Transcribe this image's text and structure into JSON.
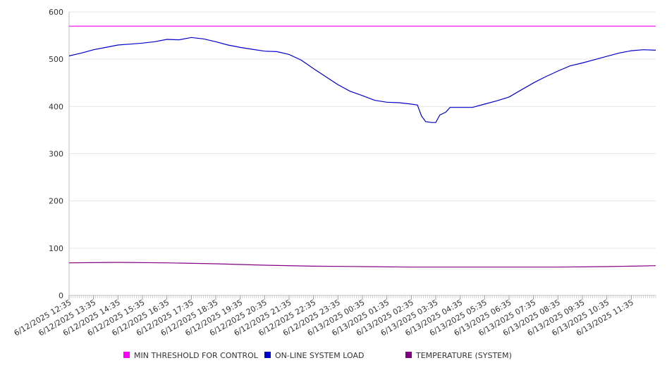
{
  "chart_data": {
    "type": "line",
    "grid": true,
    "legend_position": "bottom",
    "ylim": [
      0,
      600
    ],
    "y_ticks": [
      "0",
      "100",
      "200",
      "300",
      "400",
      "500",
      "600"
    ],
    "x_tick_labels": [
      "6/12/2025 12:35",
      "6/12/2025 13:35",
      "6/12/2025 14:35",
      "6/12/2025 15:35",
      "6/12/2025 16:35",
      "6/12/2025 17:35",
      "6/12/2025 18:35",
      "6/12/2025 19:35",
      "6/12/2025 20:35",
      "6/12/2025 21:35",
      "6/12/2025 22:35",
      "6/12/2025 23:35",
      "6/13/2025 00:35",
      "6/13/2025 01:35",
      "6/13/2025 02:35",
      "6/13/2025 03:35",
      "6/13/2025 04:35",
      "6/13/2025 05:35",
      "6/13/2025 06:35",
      "6/13/2025 07:35",
      "6/13/2025 08:35",
      "6/13/2025 09:35",
      "6/13/2025 10:35",
      "6/13/2025 11:35"
    ],
    "x_range": [
      "6/12/2025 12:35",
      "6/13/2025 12:35"
    ],
    "series": [
      {
        "name": "MIN THRESHOLD FOR CONTROL",
        "color": "#ff00ff",
        "points": [
          [
            "6/12/2025 12:35",
            570
          ],
          [
            "6/13/2025 12:35",
            570
          ]
        ]
      },
      {
        "name": "ON-LINE SYSTEM LOAD",
        "color": "#0000cc",
        "points": [
          [
            "6/12/2025 12:35",
            507
          ],
          [
            "6/12/2025 13:05",
            513
          ],
          [
            "6/12/2025 13:35",
            520
          ],
          [
            "6/12/2025 14:05",
            525
          ],
          [
            "6/12/2025 14:35",
            530
          ],
          [
            "6/12/2025 15:05",
            532
          ],
          [
            "6/12/2025 15:35",
            534
          ],
          [
            "6/12/2025 16:05",
            537
          ],
          [
            "6/12/2025 16:35",
            542
          ],
          [
            "6/12/2025 17:05",
            541
          ],
          [
            "6/12/2025 17:35",
            546
          ],
          [
            "6/12/2025 18:05",
            543
          ],
          [
            "6/12/2025 18:35",
            537
          ],
          [
            "6/12/2025 19:05",
            530
          ],
          [
            "6/12/2025 19:35",
            525
          ],
          [
            "6/12/2025 20:05",
            521
          ],
          [
            "6/12/2025 20:35",
            517
          ],
          [
            "6/12/2025 21:05",
            516
          ],
          [
            "6/12/2025 21:35",
            510
          ],
          [
            "6/12/2025 22:05",
            498
          ],
          [
            "6/12/2025 22:35",
            480
          ],
          [
            "6/12/2025 23:05",
            463
          ],
          [
            "6/12/2025 23:35",
            446
          ],
          [
            "6/13/2025 00:05",
            432
          ],
          [
            "6/13/2025 00:35",
            423
          ],
          [
            "6/13/2025 01:05",
            413
          ],
          [
            "6/13/2025 01:35",
            409
          ],
          [
            "6/13/2025 02:05",
            408
          ],
          [
            "6/13/2025 02:35",
            405
          ],
          [
            "6/13/2025 02:50",
            403
          ],
          [
            "6/13/2025 03:00",
            380
          ],
          [
            "6/13/2025 03:10",
            368
          ],
          [
            "6/13/2025 03:25",
            366
          ],
          [
            "6/13/2025 03:35",
            366
          ],
          [
            "6/13/2025 03:45",
            382
          ],
          [
            "6/13/2025 04:00",
            388
          ],
          [
            "6/13/2025 04:10",
            398
          ],
          [
            "6/13/2025 04:35",
            398
          ],
          [
            "6/13/2025 05:05",
            398
          ],
          [
            "6/13/2025 05:35",
            405
          ],
          [
            "6/13/2025 06:05",
            412
          ],
          [
            "6/13/2025 06:35",
            420
          ],
          [
            "6/13/2025 07:05",
            435
          ],
          [
            "6/13/2025 07:35",
            450
          ],
          [
            "6/13/2025 08:05",
            463
          ],
          [
            "6/13/2025 08:35",
            475
          ],
          [
            "6/13/2025 09:05",
            486
          ],
          [
            "6/13/2025 09:35",
            492
          ],
          [
            "6/13/2025 10:05",
            499
          ],
          [
            "6/13/2025 10:35",
            506
          ],
          [
            "6/13/2025 11:05",
            513
          ],
          [
            "6/13/2025 11:35",
            518
          ],
          [
            "6/13/2025 12:05",
            520
          ],
          [
            "6/13/2025 12:35",
            519
          ]
        ]
      },
      {
        "name": "TEMPERATURE (SYSTEM)",
        "color": "#800080",
        "points": [
          [
            "6/12/2025 12:35",
            69
          ],
          [
            "6/12/2025 14:35",
            70
          ],
          [
            "6/12/2025 16:35",
            69
          ],
          [
            "6/12/2025 18:35",
            67
          ],
          [
            "6/12/2025 20:35",
            64
          ],
          [
            "6/12/2025 22:35",
            62
          ],
          [
            "6/13/2025 00:35",
            61
          ],
          [
            "6/13/2025 02:35",
            60
          ],
          [
            "6/13/2025 04:35",
            60
          ],
          [
            "6/13/2025 06:35",
            60
          ],
          [
            "6/13/2025 08:35",
            60
          ],
          [
            "6/13/2025 10:35",
            61
          ],
          [
            "6/13/2025 12:35",
            63
          ]
        ]
      }
    ]
  }
}
